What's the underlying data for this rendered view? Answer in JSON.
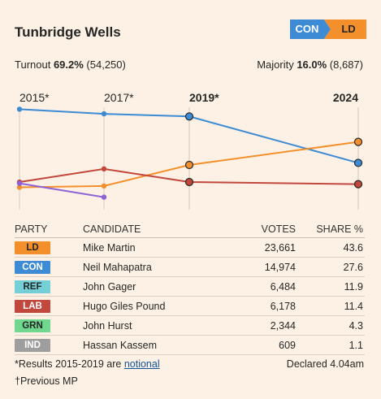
{
  "header": {
    "title": "Tunbridge Wells",
    "badge_from": "CON",
    "badge_to": "LD"
  },
  "stats": {
    "turnout_label": "Turnout ",
    "turnout_pct": "69.2%",
    "turnout_count": " (54,250)",
    "majority_label": "Majority ",
    "majority_pct": "16.0%",
    "majority_count": " (8,687)"
  },
  "chart_data": {
    "type": "line",
    "x": [
      "2015*",
      "2017*",
      "2019*",
      "2024"
    ],
    "ylim": [
      0,
      70
    ],
    "grid": true,
    "series": [
      {
        "name": "CON",
        "color": "#3d8bd4",
        "values": [
          68.5,
          65.0,
          63.0,
          27.6
        ]
      },
      {
        "name": "LD",
        "color": "#f4902c",
        "values": [
          9.0,
          10.0,
          26.0,
          43.6
        ]
      },
      {
        "name": "LAB",
        "color": "#c2473d",
        "values": [
          13.0,
          23.0,
          13.0,
          11.4
        ]
      },
      {
        "name": "UKIP",
        "color": "#8d62d6",
        "values": [
          12.0,
          1.5,
          null,
          null
        ]
      }
    ]
  },
  "table": {
    "headers": [
      "PARTY",
      "CANDIDATE",
      "VOTES",
      "SHARE %"
    ],
    "rows": [
      {
        "party": "LD",
        "bg": "#f4902c",
        "fg": "#262626",
        "candidate": "Mike Martin",
        "votes": "23,661",
        "share": "43.6"
      },
      {
        "party": "CON",
        "bg": "#3d8bd4",
        "fg": "#ffffff",
        "candidate": "Neil Mahapatra",
        "votes": "14,974",
        "share": "27.6"
      },
      {
        "party": "REF",
        "bg": "#74cfd6",
        "fg": "#262626",
        "candidate": "John Gager",
        "votes": "6,484",
        "share": "11.9"
      },
      {
        "party": "LAB",
        "bg": "#c2473d",
        "fg": "#ffffff",
        "candidate": "Hugo Giles Pound",
        "votes": "6,178",
        "share": "11.4"
      },
      {
        "party": "GRN",
        "bg": "#6fd88e",
        "fg": "#262626",
        "candidate": "John Hurst",
        "votes": "2,344",
        "share": "4.3"
      },
      {
        "party": "IND",
        "bg": "#9e9e9e",
        "fg": "#ffffff",
        "candidate": "Hassan Kassem",
        "votes": "609",
        "share": "1.1"
      }
    ]
  },
  "footer": {
    "note_prefix": "*Results 2015-2019 are ",
    "note_link": "notional",
    "declared": "Declared 4.04am",
    "prev_mp": "†Previous MP"
  }
}
